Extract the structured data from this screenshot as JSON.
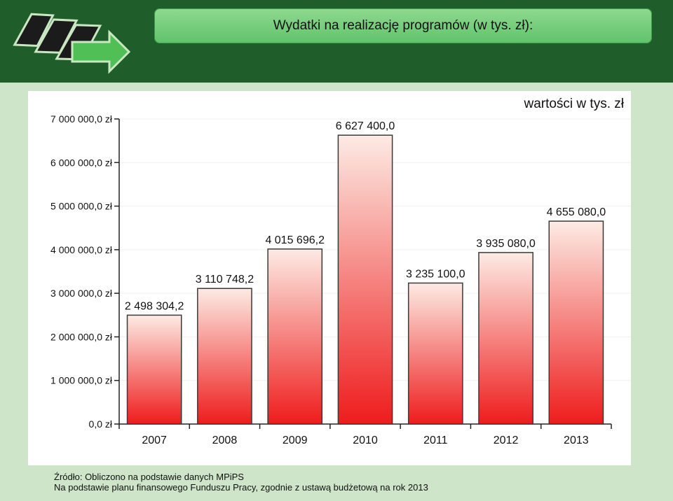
{
  "header": {
    "title": "Wydatki na realizację programów (w tys. zł):"
  },
  "chart_data": {
    "type": "bar",
    "title": "",
    "annotation": "wartości w tys. zł",
    "categories": [
      "2007",
      "2008",
      "2009",
      "2010",
      "2011",
      "2012",
      "2013"
    ],
    "values": [
      2498304.2,
      3110748.2,
      4015696.2,
      6627400.0,
      3235100.0,
      3935080.0,
      4655080.0
    ],
    "value_labels": [
      "2 498 304,2",
      "3 110 748,2",
      "4 015 696,2",
      "6 627 400,0",
      "3 235 100,0",
      "3 935 080,0",
      "4 655 080,0"
    ],
    "yticks": [
      0,
      1000000,
      2000000,
      3000000,
      4000000,
      5000000,
      6000000,
      7000000
    ],
    "ytick_labels": [
      "0,0 zł",
      "1 000 000,0 zł",
      "2 000 000,0 zł",
      "3 000 000,0 zł",
      "4 000 000,0 zł",
      "5 000 000,0 zł",
      "6 000 000,0 zł",
      "7 000 000,0 zł"
    ],
    "ylim": [
      0,
      7000000
    ],
    "xlabel": "",
    "ylabel": "",
    "grid": false,
    "colors": {
      "bar_top": "#fdebe4",
      "bar_bottom": "#ee1c1c",
      "bar_stroke": "#3a3a3a"
    }
  },
  "footer": {
    "source_line": "Źródło: Obliczono na podstawie danych MPiPS",
    "note_line": "Na podstawie planu finansowego Funduszu Pracy, zgodnie z ustawą budżetową na rok 2013"
  }
}
